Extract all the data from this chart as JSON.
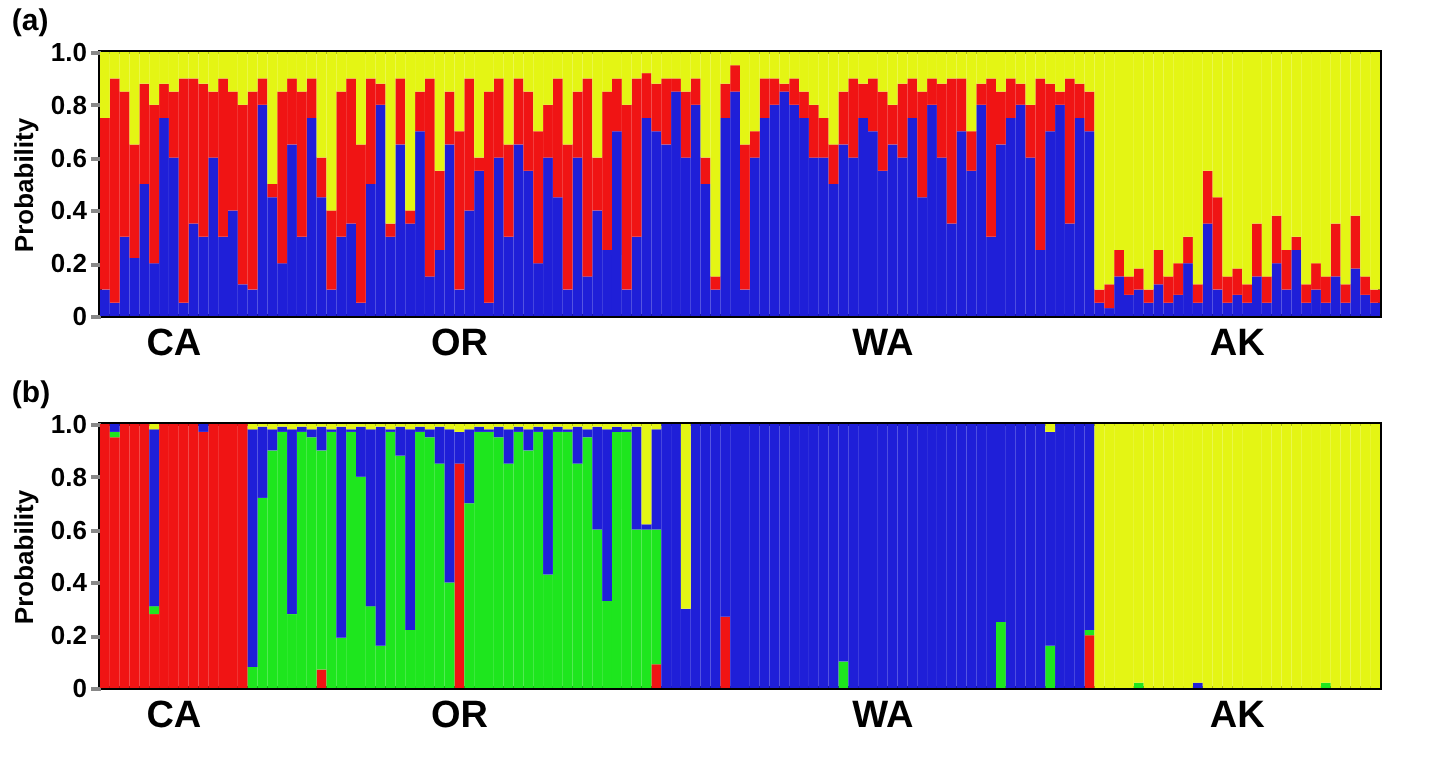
{
  "chart_data": [
    {
      "type": "bar",
      "title": "(a)",
      "ylabel": "Probability",
      "stacked": true,
      "ylim": [
        0,
        1
      ],
      "yticks": [
        0,
        0.2,
        0.4,
        0.6,
        0.8,
        {
          "value": 1,
          "label": "1.0"
        }
      ],
      "categories": [
        null,
        null,
        null,
        null,
        null,
        null,
        null,
        "CA",
        null,
        null,
        null,
        null,
        null,
        null,
        null,
        null,
        null,
        null,
        null,
        null,
        null,
        null,
        null,
        null,
        null,
        null,
        null,
        null,
        null,
        null,
        null,
        null,
        null,
        null,
        null,
        null,
        "OR",
        null,
        null,
        null,
        null,
        null,
        null,
        null,
        null,
        null,
        null,
        null,
        null,
        null,
        null,
        null,
        null,
        null,
        null,
        null,
        null,
        null,
        null,
        null,
        null,
        null,
        null,
        null,
        null,
        null,
        null,
        null,
        null,
        null,
        null,
        null,
        null,
        null,
        null,
        null,
        null,
        null,
        null,
        "WA",
        null,
        null,
        null,
        null,
        null,
        null,
        null,
        null,
        null,
        null,
        null,
        null,
        null,
        null,
        null,
        null,
        null,
        null,
        null,
        null,
        null,
        null,
        null,
        null,
        null,
        null,
        null,
        null,
        null,
        null,
        null,
        null,
        null,
        null,
        null,
        "AK",
        null,
        null,
        null,
        null,
        null,
        null,
        null,
        null,
        null,
        null,
        null,
        null,
        null,
        null
      ],
      "series": [
        {
          "color": "#1f1fd8",
          "values": [
            0.1,
            0.05,
            0.3,
            0.22,
            0.5,
            0.2,
            0.75,
            0.6,
            0.05,
            0.35,
            0.3,
            0.6,
            0.3,
            0.4,
            0.12,
            0.1,
            0.8,
            0.45,
            0.2,
            0.65,
            0.3,
            0.75,
            0.45,
            0.1,
            0.3,
            0.35,
            0.05,
            0.5,
            0.8,
            0.3,
            0.65,
            0.35,
            0.7,
            0.15,
            0.25,
            0.65,
            0.1,
            0.4,
            0.55,
            0.05,
            0.6,
            0.3,
            0.65,
            0.55,
            0.2,
            0.6,
            0.45,
            0.1,
            0.6,
            0.15,
            0.4,
            0.25,
            0.7,
            0.1,
            0.3,
            0.75,
            0.7,
            0.65,
            0.85,
            0.6,
            0.8,
            0.5,
            0.1,
            0.75,
            0.85,
            0.1,
            0.6,
            0.75,
            0.8,
            0.85,
            0.8,
            0.75,
            0.6,
            0.6,
            0.5,
            0.65,
            0.6,
            0.75,
            0.7,
            0.55,
            0.65,
            0.6,
            0.75,
            0.45,
            0.8,
            0.6,
            0.35,
            0.7,
            0.55,
            0.8,
            0.3,
            0.65,
            0.75,
            0.8,
            0.6,
            0.25,
            0.7,
            0.8,
            0.35,
            0.75,
            0.7,
            0.05,
            0.03,
            0.15,
            0.08,
            0.1,
            0.05,
            0.12,
            0.05,
            0.08,
            0.2,
            0.05,
            0.35,
            0.1,
            0.05,
            0.08,
            0.05,
            0.15,
            0.05,
            0.2,
            0.1,
            0.25,
            0.05,
            0.1,
            0.05,
            0.15,
            0.05,
            0.18,
            0.08,
            0.05
          ]
        },
        {
          "color": "#f01414",
          "values": [
            0.65,
            0.85,
            0.55,
            0.43,
            0.38,
            0.6,
            0.13,
            0.25,
            0.85,
            0.55,
            0.58,
            0.25,
            0.6,
            0.45,
            0.68,
            0.75,
            0.1,
            0.05,
            0.65,
            0.25,
            0.55,
            0.15,
            0.15,
            0.3,
            0.55,
            0.55,
            0.6,
            0.4,
            0.08,
            0.05,
            0.25,
            0.05,
            0.15,
            0.75,
            0.3,
            0.2,
            0.6,
            0.5,
            0.05,
            0.8,
            0.3,
            0.35,
            0.25,
            0.3,
            0.5,
            0.2,
            0.45,
            0.55,
            0.25,
            0.75,
            0.2,
            0.6,
            0.2,
            0.7,
            0.6,
            0.17,
            0.18,
            0.25,
            0.05,
            0.25,
            0.1,
            0.1,
            0.05,
            0.13,
            0.1,
            0.55,
            0.1,
            0.15,
            0.1,
            0.03,
            0.1,
            0.1,
            0.2,
            0.15,
            0.15,
            0.2,
            0.3,
            0.13,
            0.2,
            0.3,
            0.15,
            0.28,
            0.15,
            0.4,
            0.1,
            0.28,
            0.55,
            0.2,
            0.15,
            0.08,
            0.6,
            0.2,
            0.15,
            0.08,
            0.2,
            0.65,
            0.18,
            0.05,
            0.55,
            0.13,
            0.15,
            0.05,
            0.09,
            0.1,
            0.07,
            0.08,
            0.05,
            0.13,
            0.1,
            0.12,
            0.1,
            0.07,
            0.2,
            0.35,
            0.1,
            0.1,
            0.07,
            0.2,
            0.1,
            0.18,
            0.15,
            0.05,
            0.07,
            0.1,
            0.1,
            0.2,
            0.07,
            0.2,
            0.07,
            0.05
          ]
        },
        {
          "color": "#e4f514",
          "values": [
            0.25,
            0.1,
            0.15,
            0.35,
            0.12,
            0.2,
            0.12,
            0.15,
            0.1,
            0.1,
            0.12,
            0.15,
            0.1,
            0.15,
            0.2,
            0.15,
            0.1,
            0.5,
            0.15,
            0.1,
            0.15,
            0.1,
            0.4,
            0.6,
            0.15,
            0.1,
            0.35,
            0.1,
            0.12,
            0.65,
            0.1,
            0.6,
            0.15,
            0.1,
            0.45,
            0.15,
            0.3,
            0.1,
            0.4,
            0.15,
            0.1,
            0.35,
            0.1,
            0.15,
            0.3,
            0.2,
            0.1,
            0.35,
            0.15,
            0.1,
            0.4,
            0.15,
            0.1,
            0.2,
            0.1,
            0.08,
            0.12,
            0.1,
            0.1,
            0.15,
            0.1,
            0.4,
            0.85,
            0.12,
            0.05,
            0.35,
            0.3,
            0.1,
            0.1,
            0.12,
            0.1,
            0.15,
            0.2,
            0.25,
            0.35,
            0.15,
            0.1,
            0.12,
            0.1,
            0.15,
            0.2,
            0.12,
            0.1,
            0.15,
            0.1,
            0.12,
            0.1,
            0.1,
            0.3,
            0.12,
            0.1,
            0.15,
            0.1,
            0.12,
            0.2,
            0.1,
            0.12,
            0.15,
            0.1,
            0.12,
            0.15,
            0.9,
            0.88,
            0.75,
            0.85,
            0.82,
            0.9,
            0.75,
            0.85,
            0.8,
            0.7,
            0.88,
            0.45,
            0.55,
            0.85,
            0.82,
            0.88,
            0.65,
            0.85,
            0.62,
            0.75,
            0.7,
            0.88,
            0.8,
            0.85,
            0.65,
            0.88,
            0.62,
            0.85,
            0.9
          ]
        }
      ]
    },
    {
      "type": "bar",
      "title": "(b)",
      "ylabel": "Probability",
      "stacked": true,
      "ylim": [
        0,
        1
      ],
      "yticks": [
        0,
        0.2,
        0.4,
        0.6,
        0.8,
        {
          "value": 1,
          "label": "1.0"
        }
      ],
      "categories": [
        null,
        null,
        null,
        null,
        null,
        null,
        null,
        "CA",
        null,
        null,
        null,
        null,
        null,
        null,
        null,
        null,
        null,
        null,
        null,
        null,
        null,
        null,
        null,
        null,
        null,
        null,
        null,
        null,
        null,
        null,
        null,
        null,
        null,
        null,
        null,
        null,
        "OR",
        null,
        null,
        null,
        null,
        null,
        null,
        null,
        null,
        null,
        null,
        null,
        null,
        null,
        null,
        null,
        null,
        null,
        null,
        null,
        null,
        null,
        null,
        null,
        null,
        null,
        null,
        null,
        null,
        null,
        null,
        null,
        null,
        null,
        null,
        null,
        null,
        null,
        null,
        null,
        null,
        null,
        null,
        "WA",
        null,
        null,
        null,
        null,
        null,
        null,
        null,
        null,
        null,
        null,
        null,
        null,
        null,
        null,
        null,
        null,
        null,
        null,
        null,
        null,
        null,
        null,
        null,
        null,
        null,
        null,
        null,
        null,
        null,
        null,
        null,
        null,
        null,
        null,
        null,
        "AK",
        null,
        null,
        null,
        null,
        null,
        null,
        null,
        null,
        null,
        null,
        null,
        null,
        null,
        null
      ],
      "series": [
        {
          "color": "#f01414",
          "values": [
            1,
            0.95,
            1,
            1,
            1,
            0.28,
            1,
            1,
            1,
            1,
            0.97,
            1,
            1,
            1,
            1,
            0,
            0,
            0,
            0,
            0,
            0,
            0,
            0.07,
            0,
            0,
            0,
            0,
            0,
            0,
            0,
            0,
            0,
            0,
            0,
            0,
            0,
            0.85,
            0,
            0,
            0,
            0,
            0,
            0,
            0,
            0,
            0,
            0,
            0,
            0,
            0,
            0,
            0,
            0,
            0,
            0,
            0,
            0.09,
            0,
            0,
            0,
            0,
            0,
            0,
            0.27,
            0,
            0,
            0,
            0,
            0,
            0,
            0,
            0,
            0,
            0,
            0,
            0,
            0,
            0,
            0,
            0,
            0,
            0,
            0,
            0,
            0,
            0,
            0,
            0,
            0,
            0,
            0,
            0,
            0,
            0,
            0,
            0,
            0,
            0,
            0,
            0,
            0.2,
            0,
            0,
            0,
            0,
            0,
            0,
            0,
            0,
            0,
            0,
            0,
            0,
            0,
            0,
            0,
            0,
            0,
            0,
            0,
            0,
            0,
            0,
            0,
            0,
            0,
            0,
            0,
            0,
            0
          ]
        },
        {
          "color": "#1ee61e",
          "values": [
            0,
            0.02,
            0,
            0,
            0,
            0.03,
            0,
            0,
            0,
            0,
            0,
            0,
            0,
            0,
            0,
            0.08,
            0.72,
            0.9,
            0.97,
            0.28,
            0.97,
            0.95,
            0.83,
            0.97,
            0.19,
            0.97,
            0.8,
            0.31,
            0.16,
            0.97,
            0.88,
            0.22,
            0.97,
            0.95,
            0.85,
            0.4,
            0,
            0.7,
            0.97,
            0.97,
            0.95,
            0.85,
            0.97,
            0.9,
            0.97,
            0.43,
            0.97,
            0.97,
            0.85,
            0.95,
            0.6,
            0.33,
            0.97,
            0.97,
            0.6,
            0.6,
            0.51,
            0,
            0,
            0,
            0,
            0,
            0,
            0,
            0,
            0,
            0,
            0,
            0,
            0,
            0,
            0,
            0,
            0,
            0,
            0.1,
            0,
            0,
            0,
            0,
            0,
            0,
            0,
            0,
            0,
            0,
            0,
            0,
            0,
            0,
            0,
            0.25,
            0,
            0,
            0,
            0,
            0.16,
            0,
            0,
            0,
            0.02,
            0,
            0,
            0,
            0,
            0.02,
            0,
            0,
            0,
            0,
            0,
            0,
            0,
            0,
            0,
            0,
            0,
            0,
            0,
            0,
            0,
            0,
            0,
            0,
            0.02,
            0,
            0,
            0,
            0,
            0
          ]
        },
        {
          "color": "#1f1fd8",
          "values": [
            0,
            0.03,
            0,
            0,
            0,
            0.67,
            0,
            0,
            0,
            0,
            0.03,
            0,
            0,
            0,
            0,
            0.9,
            0.27,
            0.08,
            0.02,
            0.7,
            0.02,
            0.03,
            0.09,
            0.01,
            0.8,
            0.01,
            0.19,
            0.67,
            0.83,
            0.01,
            0.11,
            0.76,
            0.02,
            0.03,
            0.14,
            0.58,
            0.12,
            0.28,
            0.02,
            0.01,
            0.04,
            0.13,
            0.02,
            0.08,
            0.02,
            0.55,
            0.02,
            0.01,
            0.14,
            0.03,
            0.39,
            0.65,
            0.02,
            0.01,
            0.39,
            0.02,
            0.38,
            1,
            1,
            0.3,
            1,
            1,
            1,
            0.73,
            1,
            1,
            1,
            1,
            1,
            1,
            1,
            1,
            1,
            1,
            1,
            0.9,
            1,
            1,
            1,
            1,
            1,
            1,
            1,
            1,
            1,
            1,
            1,
            1,
            1,
            1,
            1,
            0.75,
            1,
            1,
            1,
            1,
            0.81,
            1,
            1,
            1,
            0.78,
            0,
            0,
            0,
            0,
            0,
            0,
            0,
            0,
            0,
            0,
            0.02,
            0,
            0,
            0,
            0,
            0,
            0,
            0,
            0,
            0,
            0,
            0,
            0,
            0,
            0,
            0,
            0,
            0,
            0
          ]
        },
        {
          "color": "#e4f514",
          "values": [
            0,
            0,
            0,
            0,
            0,
            0.02,
            0,
            0,
            0,
            0,
            0,
            0,
            0,
            0,
            0,
            0.02,
            0.01,
            0.02,
            0.01,
            0.02,
            0.01,
            0.02,
            0.01,
            0.02,
            0.01,
            0.02,
            0.01,
            0.02,
            0.01,
            0.02,
            0.01,
            0.02,
            0.01,
            0.02,
            0.01,
            0.02,
            0.03,
            0.02,
            0.01,
            0.02,
            0.01,
            0.02,
            0.01,
            0.02,
            0.01,
            0.02,
            0.01,
            0.02,
            0.01,
            0.02,
            0.01,
            0.02,
            0.01,
            0.02,
            0.01,
            0.38,
            0.02,
            0,
            0,
            0.7,
            0,
            0,
            0,
            0,
            0,
            0,
            0,
            0,
            0,
            0,
            0,
            0,
            0,
            0,
            0,
            0,
            0,
            0,
            0,
            0,
            0,
            0,
            0,
            0,
            0,
            0,
            0,
            0,
            0,
            0,
            0,
            0,
            0,
            0,
            0,
            0,
            0.03,
            0,
            0,
            0,
            0,
            1,
            1,
            1,
            1,
            0.98,
            1,
            1,
            1,
            1,
            1,
            0.98,
            1,
            1,
            1,
            1,
            1,
            1,
            1,
            1,
            1,
            1,
            1,
            1,
            0.98,
            1,
            1,
            1,
            1,
            1
          ]
        }
      ]
    }
  ]
}
